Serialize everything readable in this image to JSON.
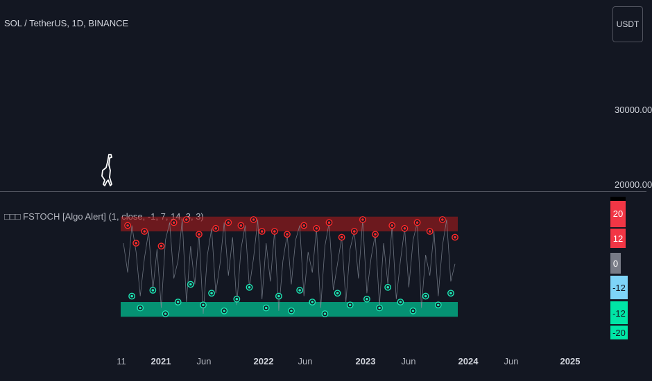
{
  "header": {
    "symbol_title": "SOL / TetherUS, 1D, BINANCE",
    "currency_button": "USDT"
  },
  "price_axis": {
    "ticks": [
      "30000.00",
      "20000.00"
    ]
  },
  "indicator": {
    "legend": "□□□ FSTOCH [Algo Alert] (1, close, -1, 7, 14, 3, 3)",
    "scale_badges": [
      {
        "label": "20",
        "bg": "#f23645",
        "fg": "#ffffff"
      },
      {
        "label": "12",
        "bg": "#f23645",
        "fg": "#ffffff"
      },
      {
        "label": "0",
        "bg": "#787b86",
        "fg": "#ffffff"
      },
      {
        "label": "-12",
        "bg": "#7ed4f8",
        "fg": "#131722"
      },
      {
        "label": "-12",
        "bg": "#00e6a6",
        "fg": "#131722"
      },
      {
        "label": "-20",
        "bg": "#00e6a6",
        "fg": "#131722"
      }
    ],
    "colors": {
      "upper_zone": "#b71c1c",
      "lower_zone": "#00c896",
      "sell_signal": "#ff2a2a",
      "buy_signal": "#1de9b6",
      "line": "#8a929e"
    }
  },
  "time_axis": {
    "ticks": [
      {
        "label": "11",
        "major": false
      },
      {
        "label": "2021",
        "major": true
      },
      {
        "label": "Jun",
        "major": false
      },
      {
        "label": "2022",
        "major": true
      },
      {
        "label": "Jun",
        "major": false
      },
      {
        "label": "2023",
        "major": true
      },
      {
        "label": "Jun",
        "major": false
      },
      {
        "label": "2024",
        "major": true
      },
      {
        "label": "Jun",
        "major": false
      },
      {
        "label": "2025",
        "major": true
      }
    ]
  },
  "chart_data": {
    "type": "line",
    "title": "SOL / TetherUS, 1D, BINANCE",
    "indicator_name": "FSTOCH [Algo Alert] (1, close, -1, 7, 14, 3, 3)",
    "ylim": [
      -20,
      20
    ],
    "zones": [
      {
        "name": "overbought",
        "from": 12,
        "to": 17
      },
      {
        "name": "oversold",
        "from": -17,
        "to": -12
      }
    ],
    "series": [
      {
        "values": [
          8,
          -2,
          14,
          5,
          -10,
          3,
          12,
          -8,
          6,
          -14,
          9,
          15,
          -4,
          2,
          16,
          -12,
          7,
          -6,
          11,
          -16,
          4,
          13,
          -9,
          1,
          15,
          -3,
          10,
          -13,
          6,
          14,
          -7,
          3,
          16,
          -11,
          8,
          -5,
          12,
          -15,
          2,
          11,
          -6,
          9,
          14,
          -10,
          5,
          -2,
          13,
          -14,
          7,
          15,
          -8,
          1,
          10,
          -12,
          6,
          12,
          -4,
          16,
          -9,
          3,
          11,
          -13,
          8,
          -6,
          14,
          -11,
          2,
          13,
          -7,
          9,
          15,
          -14,
          4,
          -3,
          12,
          -10,
          7,
          16,
          -5,
          1
        ]
      }
    ],
    "signals": {
      "sell": [
        [
          1,
          14
        ],
        [
          3,
          8
        ],
        [
          5,
          12
        ],
        [
          9,
          7
        ],
        [
          12,
          15
        ],
        [
          15,
          16
        ],
        [
          18,
          11
        ],
        [
          22,
          13
        ],
        [
          25,
          15
        ],
        [
          28,
          14
        ],
        [
          31,
          16
        ],
        [
          33,
          12
        ],
        [
          36,
          12
        ],
        [
          39,
          11
        ],
        [
          43,
          14
        ],
        [
          46,
          13
        ],
        [
          49,
          15
        ],
        [
          52,
          10
        ],
        [
          55,
          12
        ],
        [
          57,
          16
        ],
        [
          60,
          11
        ],
        [
          64,
          14
        ],
        [
          67,
          13
        ],
        [
          70,
          15
        ],
        [
          73,
          12
        ],
        [
          76,
          16
        ],
        [
          79,
          10
        ]
      ],
      "buy": [
        [
          2,
          -10
        ],
        [
          4,
          -14
        ],
        [
          7,
          -8
        ],
        [
          10,
          -16
        ],
        [
          13,
          -12
        ],
        [
          16,
          -6
        ],
        [
          19,
          -13
        ],
        [
          21,
          -9
        ],
        [
          24,
          -15
        ],
        [
          27,
          -11
        ],
        [
          30,
          -7
        ],
        [
          34,
          -14
        ],
        [
          37,
          -10
        ],
        [
          40,
          -15
        ],
        [
          42,
          -8
        ],
        [
          45,
          -12
        ],
        [
          48,
          -16
        ],
        [
          51,
          -9
        ],
        [
          54,
          -13
        ],
        [
          58,
          -11
        ],
        [
          61,
          -14
        ],
        [
          63,
          -7
        ],
        [
          66,
          -12
        ],
        [
          69,
          -15
        ],
        [
          72,
          -10
        ],
        [
          75,
          -13
        ],
        [
          78,
          -9
        ]
      ]
    }
  }
}
